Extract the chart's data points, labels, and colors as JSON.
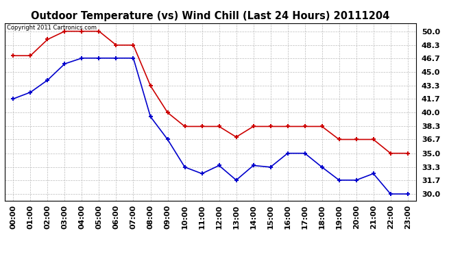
{
  "title": "Outdoor Temperature (vs) Wind Chill (Last 24 Hours) 20111204",
  "copyright_text": "Copyright 2011 Cartronics.com",
  "x_labels": [
    "00:00",
    "01:00",
    "02:00",
    "03:00",
    "04:00",
    "05:00",
    "06:00",
    "07:00",
    "08:00",
    "09:00",
    "10:00",
    "11:00",
    "12:00",
    "13:00",
    "14:00",
    "15:00",
    "16:00",
    "17:00",
    "18:00",
    "19:00",
    "20:00",
    "21:00",
    "22:00",
    "23:00"
  ],
  "temp_red": [
    47.0,
    47.0,
    49.0,
    50.0,
    50.0,
    50.0,
    48.3,
    48.3,
    43.3,
    40.0,
    38.3,
    38.3,
    38.3,
    37.0,
    38.3,
    38.3,
    38.3,
    38.3,
    38.3,
    36.7,
    36.7,
    36.7,
    35.0,
    35.0
  ],
  "wind_chill_blue": [
    41.7,
    42.5,
    44.0,
    46.0,
    46.7,
    46.7,
    46.7,
    46.7,
    39.5,
    36.7,
    33.3,
    32.5,
    33.5,
    31.7,
    33.5,
    33.3,
    35.0,
    35.0,
    33.3,
    31.7,
    31.7,
    32.5,
    30.0,
    30.0
  ],
  "y_ticks": [
    30.0,
    31.7,
    33.3,
    35.0,
    36.7,
    38.3,
    40.0,
    41.7,
    43.3,
    45.0,
    46.7,
    48.3,
    50.0
  ],
  "ylim": [
    29.2,
    51.0
  ],
  "bg_color": "#ffffff",
  "grid_color": "#bbbbbb",
  "red_color": "#cc0000",
  "blue_color": "#0000cc",
  "title_fontsize": 10.5,
  "tick_fontsize": 8,
  "copyright_fontsize": 6
}
